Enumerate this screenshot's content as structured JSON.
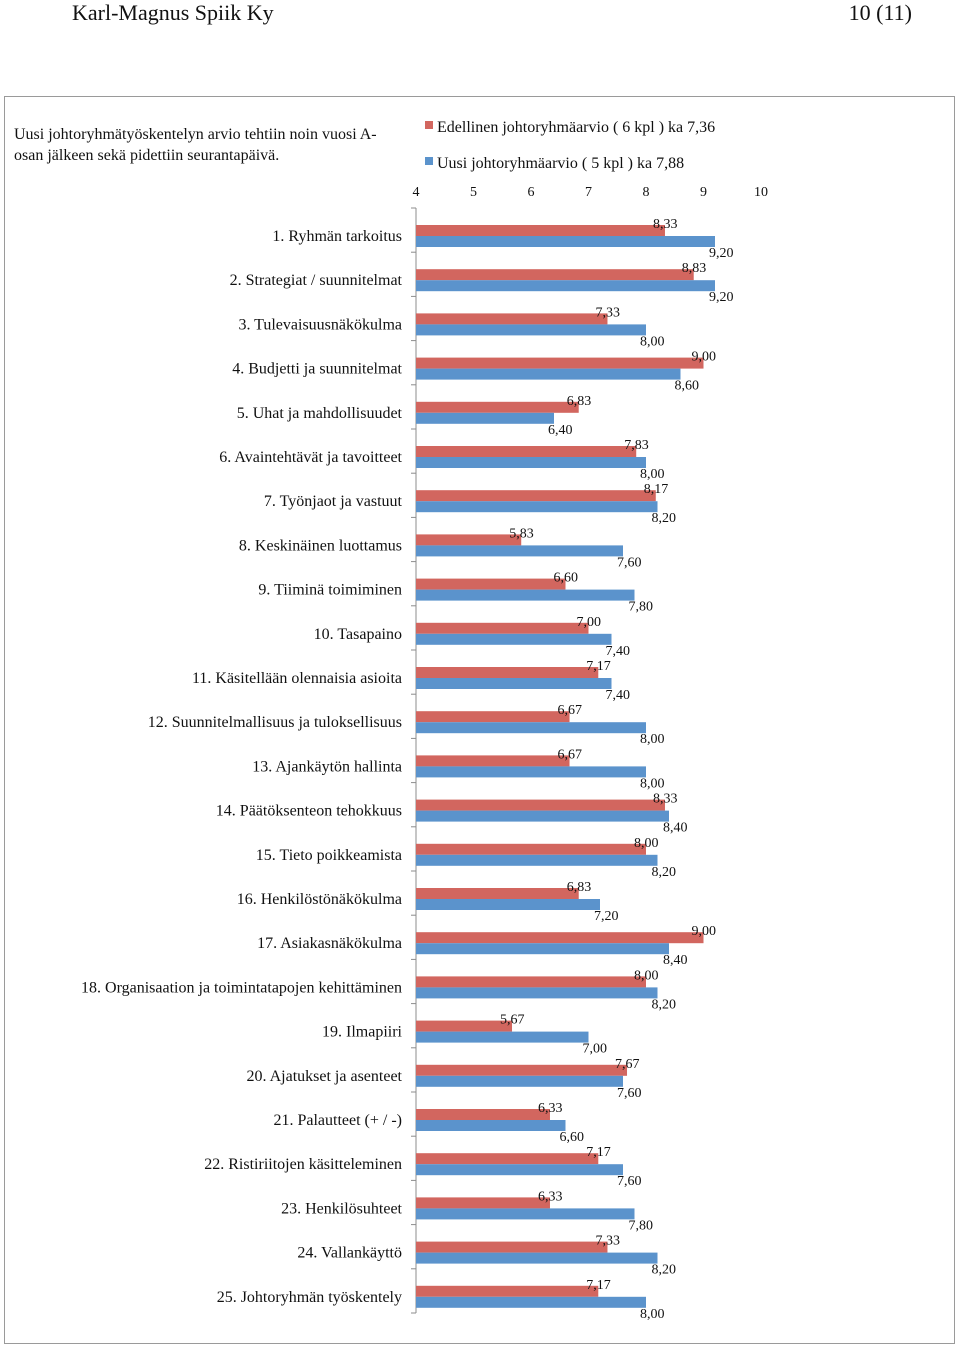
{
  "page_header": {
    "left": "Karl-Magnus Spiik Ky",
    "right": "10 (11)"
  },
  "chart_data": {
    "type": "bar",
    "orientation": "horizontal",
    "title": "Uusi johtoryhmätyöskentelyn arvio tehtiin noin vuosi A-osan jälkeen sekä pidettiin seurantapäivä.",
    "xlim": [
      4,
      10
    ],
    "xticks": [
      "4",
      "5",
      "6",
      "7",
      "8",
      "9",
      "10"
    ],
    "legend_position": "top",
    "categories": [
      "1. Ryhmän tarkoitus",
      "2. Strategiat / suunnitelmat",
      "3. Tulevaisuusnäkökulma",
      "4. Budjetti ja suunnitelmat",
      "5. Uhat ja mahdollisuudet",
      "6. Avaintehtävät ja tavoitteet",
      "7. Työnjaot ja vastuut",
      "8. Keskinäinen luottamus",
      "9. Tiiminä toimiminen",
      "10. Tasapaino",
      "11. Käsitellään olennaisia asioita",
      "12. Suunnitelmallisuus ja tuloksellisuus",
      "13. Ajankäytön hallinta",
      "14. Päätöksenteon tehokkuus",
      "15. Tieto poikkeamista",
      "16. Henkilöstönäkökulma",
      "17. Asiakasnäkökulma",
      "18. Organisaation ja toimintatapojen kehittäminen",
      "19. Ilmapiiri",
      "20. Ajatukset ja asenteet",
      "21. Palautteet (+ / -)",
      "22. Ristiriitojen käsitteleminen",
      "23. Henkilösuhteet",
      "24. Vallankäyttö",
      "25. Johtoryhmän työskentely"
    ],
    "series": [
      {
        "name": "Edellinen johtoryhmäarvio ( 6 kpl ) ka 7,36",
        "color": "#d2665f",
        "values": [
          8.33,
          8.83,
          7.33,
          9.0,
          6.83,
          7.83,
          8.17,
          5.83,
          6.6,
          7.0,
          7.17,
          6.67,
          6.67,
          8.33,
          8.0,
          6.83,
          9.0,
          8.0,
          5.67,
          7.67,
          6.33,
          7.17,
          6.33,
          7.33,
          7.17
        ],
        "labels": [
          "8,33",
          "8,83",
          "7,33",
          "9,00",
          "6,83",
          "7,83",
          "8,17",
          "5,83",
          "6,60",
          "7,00",
          "7,17",
          "6,67",
          "6,67",
          "8,33",
          "8,00",
          "6,83",
          "9,00",
          "8,00",
          "5,67",
          "7,67",
          "6,33",
          "7,17",
          "6,33",
          "7,33",
          "7,17"
        ]
      },
      {
        "name": "Uusi johtoryhmäarvio ( 5 kpl ) ka 7,88",
        "color": "#5b93cc",
        "values": [
          9.2,
          9.2,
          8.0,
          8.6,
          6.4,
          8.0,
          8.2,
          7.6,
          7.8,
          7.4,
          7.4,
          8.0,
          8.0,
          8.4,
          8.2,
          7.2,
          8.4,
          8.2,
          7.0,
          7.6,
          6.6,
          7.6,
          7.8,
          8.2,
          8.0
        ],
        "labels": [
          "9,20",
          "9,20",
          "8,00",
          "8,60",
          "6,40",
          "8,00",
          "8,20",
          "7,60",
          "7,80",
          "7,40",
          "7,40",
          "8,00",
          "8,00",
          "8,40",
          "8,20",
          "7,20",
          "8,40",
          "8,20",
          "7,00",
          "7,60",
          "6,60",
          "7,60",
          "7,80",
          "8,20",
          "8,00"
        ]
      }
    ]
  }
}
